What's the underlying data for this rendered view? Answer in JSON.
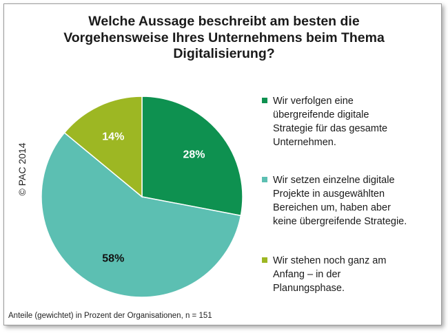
{
  "copyright": "© PAC 2014",
  "footnote": "Anteile (gewichtet) in Prozent der Organisationen, n = 151",
  "chart_data": {
    "type": "pie",
    "title_lines": [
      "Welche Aussage beschreibt am besten die",
      "Vorgehensweise Ihres Unternehmens beim Thema",
      "Digitalisierung?"
    ],
    "slices": [
      {
        "label_lines": [
          "Wir verfolgen eine",
          "übergreifende digitale",
          "Strategie für das gesamte",
          "Unternehmen."
        ],
        "value": 28,
        "value_label": "28%",
        "color": "#0e9150"
      },
      {
        "label_lines": [
          "Wir setzen einzelne digitale",
          "Projekte in ausgewählten",
          "Bereichen um, haben aber",
          "keine übergreifende Strategie."
        ],
        "value": 58,
        "value_label": "58%",
        "color": "#5cbfb2"
      },
      {
        "label_lines": [
          "Wir stehen noch ganz am",
          "Anfang – in der",
          "Planungsphase."
        ],
        "value": 14,
        "value_label": "14%",
        "color": "#9db723"
      }
    ]
  }
}
